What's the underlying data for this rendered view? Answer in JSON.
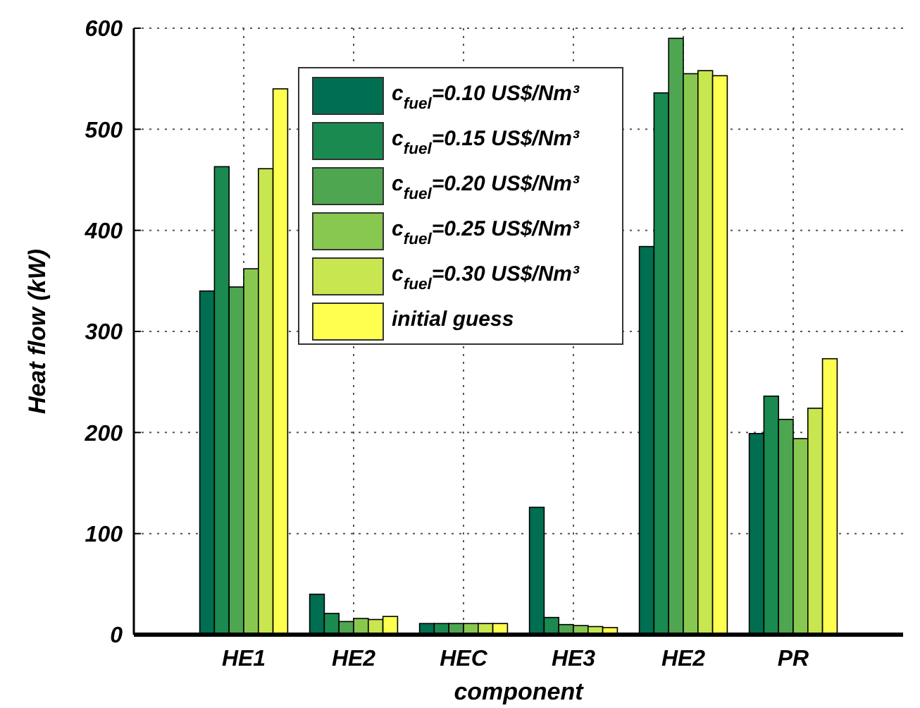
{
  "chart_data": {
    "type": "bar",
    "xlabel": "component",
    "ylabel": "Heat flow (kW)",
    "categories": [
      "HE1",
      "HE2",
      "HEC",
      "HE3",
      "HE2",
      "PR"
    ],
    "series": [
      {
        "name": "c$_{fuel}$=0.10 US$/Nm³",
        "color": "#006e50",
        "values": [
          340,
          40,
          11,
          126,
          384,
          199
        ]
      },
      {
        "name": "c$_{fuel}$=0.15 US$/Nm³",
        "color": "#1a8a50",
        "values": [
          463,
          21,
          11,
          17,
          536,
          236
        ]
      },
      {
        "name": "c$_{fuel}$=0.20 US$/Nm³",
        "color": "#4ea650",
        "values": [
          344,
          13,
          11,
          10,
          590,
          213
        ]
      },
      {
        "name": "c$_{fuel}$=0.25 US$/Nm³",
        "color": "#88c850",
        "values": [
          362,
          16,
          11,
          9,
          555,
          194
        ]
      },
      {
        "name": "c$_{fuel}$=0.30 US$/Nm³",
        "color": "#c8e650",
        "values": [
          461,
          15,
          11,
          8,
          558,
          224
        ]
      },
      {
        "name": "initial guess",
        "color": "#ffff50",
        "values": [
          540,
          18,
          11,
          7,
          553,
          273
        ]
      }
    ],
    "ylim": [
      0,
      600
    ],
    "yticks": [
      0,
      100,
      200,
      300,
      400,
      500,
      600
    ],
    "grid": true,
    "legend": "top"
  }
}
